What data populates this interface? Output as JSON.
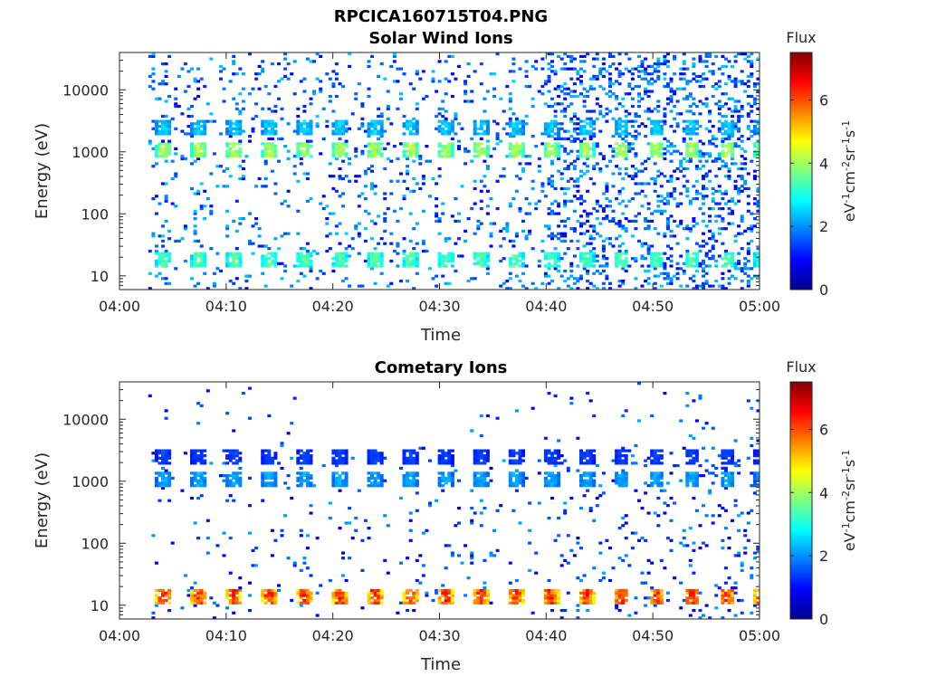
{
  "figure": {
    "title": "RPCICA160715T04.PNG",
    "colorbar": {
      "label": "Flux",
      "unit_parts": [
        "eV",
        "-1",
        "cm",
        "-2",
        "sr",
        "-1",
        "s",
        "-1"
      ],
      "ticks": [
        "0",
        "2",
        "4",
        "6"
      ],
      "range": [
        0,
        7.5
      ],
      "colormap": "jet"
    }
  },
  "chart_data": [
    {
      "type": "heatmap",
      "title": "Solar Wind Ions",
      "xlabel": "Time",
      "ylabel": "Energy (eV)",
      "xticks": [
        "04:00",
        "04:10",
        "04:20",
        "04:30",
        "04:40",
        "04:50",
        "05:00"
      ],
      "xlim_minutes": [
        0,
        60
      ],
      "yticks": [
        "10",
        "100",
        "1000",
        "10000"
      ],
      "ylim": [
        6,
        40000
      ],
      "yscale": "log",
      "data_start_minute": 2.7,
      "bands": [
        {
          "center_eV": 1100,
          "peak_flux": 4.3
        },
        {
          "center_eV": 2500,
          "peak_flux": 2.6
        },
        {
          "center_eV": 18,
          "peak_flux": 3.6
        }
      ],
      "background_flux_range": [
        0.8,
        2.5
      ]
    },
    {
      "type": "heatmap",
      "title": "Cometary Ions",
      "xlabel": "Time",
      "ylabel": "Energy (eV)",
      "xticks": [
        "04:00",
        "04:10",
        "04:20",
        "04:30",
        "04:40",
        "04:50",
        "05:00"
      ],
      "xlim_minutes": [
        0,
        60
      ],
      "yticks": [
        "10",
        "100",
        "1000",
        "10000"
      ],
      "ylim": [
        6,
        40000
      ],
      "yscale": "log",
      "data_start_minute": 2.7,
      "bands": [
        {
          "center_eV": 14,
          "peak_flux": 6.5
        },
        {
          "center_eV": 1100,
          "peak_flux": 2.3
        },
        {
          "center_eV": 2500,
          "peak_flux": 1.5
        }
      ],
      "background_flux_range": [
        0.6,
        2.2
      ]
    }
  ]
}
